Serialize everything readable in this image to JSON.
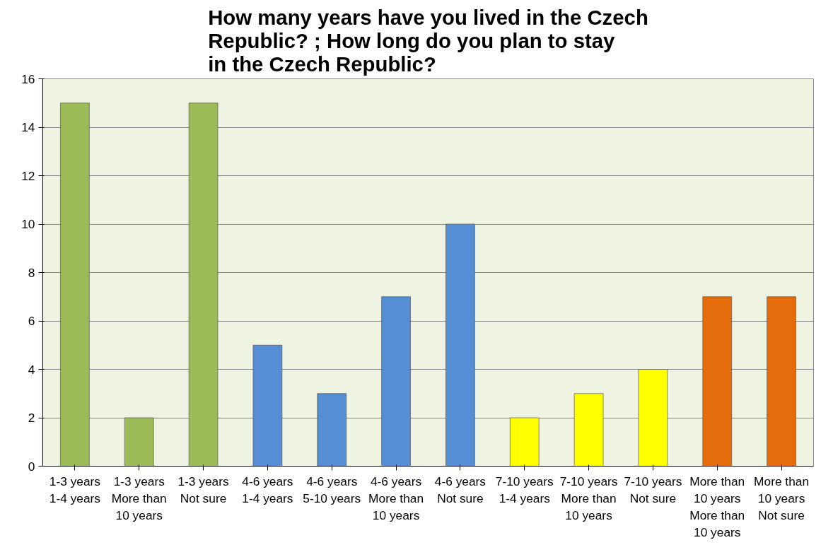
{
  "chart_data": {
    "type": "bar",
    "title": "How many years have you lived in the Czech Republic? ; How long do you plan to stay in the Czech Republic?",
    "categories": [
      "1-3 years 1-4 years",
      "1-3 years More than 10 years",
      "1-3 years Not sure",
      "4-6 years 1-4 years",
      "4-6 years 5-10 years",
      "4-6 years More than 10 years",
      "4-6 years Not sure",
      "7-10 years 1-4 years",
      "7-10 years More than 10 years",
      "7-10 years Not sure",
      "More than 10 years More than 10 years",
      "More than 10 years Not sure"
    ],
    "values": [
      15,
      2,
      15,
      5,
      3,
      7,
      10,
      2,
      3,
      4,
      7,
      7
    ],
    "colors": [
      "#9bbb59",
      "#9bbb59",
      "#9bbb59",
      "#558ed5",
      "#558ed5",
      "#558ed5",
      "#558ed5",
      "#ffff00",
      "#ffff00",
      "#ffff00",
      "#e46c0a",
      "#e46c0a"
    ],
    "ylim": [
      0,
      16
    ],
    "yticks": [
      0,
      2,
      4,
      6,
      8,
      10,
      12,
      14,
      16
    ],
    "grid": "y"
  }
}
